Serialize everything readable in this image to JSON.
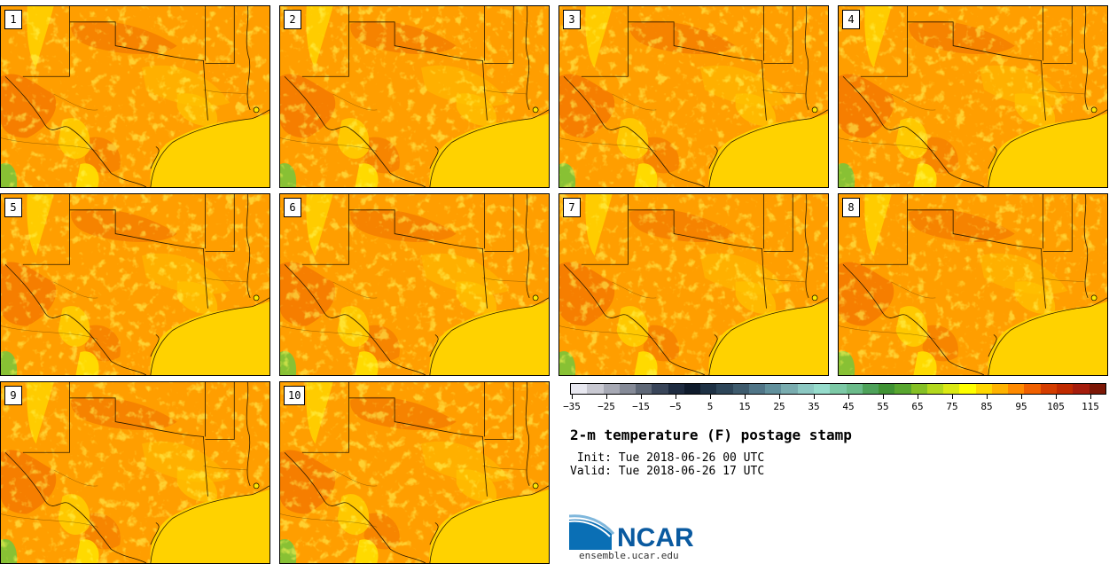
{
  "panels": [
    {
      "label": "1"
    },
    {
      "label": "2"
    },
    {
      "label": "3"
    },
    {
      "label": "4"
    },
    {
      "label": "5"
    },
    {
      "label": "6"
    },
    {
      "label": "7"
    },
    {
      "label": "8"
    },
    {
      "label": "9"
    },
    {
      "label": "10"
    }
  ],
  "colorbar": {
    "colors": [
      "#e8e8f0",
      "#c9c9d2",
      "#a7a9b4",
      "#858a97",
      "#5f6877",
      "#394559",
      "#1e2b40",
      "#0f1b2c",
      "#1e3144",
      "#2d4558",
      "#3e5b6d",
      "#507587",
      "#61909c",
      "#79acaf",
      "#8cc8c2",
      "#96dccc",
      "#7cc9a6",
      "#6bbb8a",
      "#4ea25a",
      "#3f9233",
      "#58a62f",
      "#85c025",
      "#b3d81d",
      "#dbe914",
      "#ffff00",
      "#ffd800",
      "#ffb300",
      "#ff8a00",
      "#f06000",
      "#d43d00",
      "#c02a00",
      "#a51d0d",
      "#7c1706"
    ],
    "tick_labels": [
      "−35",
      "−25",
      "−15",
      "−5",
      "5",
      "15",
      "25",
      "35",
      "45",
      "55",
      "65",
      "75",
      "85",
      "95",
      "105",
      "115"
    ]
  },
  "title": "2-m temperature (F) postage stamp",
  "init": "Init: Tue 2018-06-26 00 UTC",
  "valid": "Valid: Tue 2018-06-26 17 UTC",
  "logo_text": "NCAR",
  "url": "ensemble.ucar.edu"
}
